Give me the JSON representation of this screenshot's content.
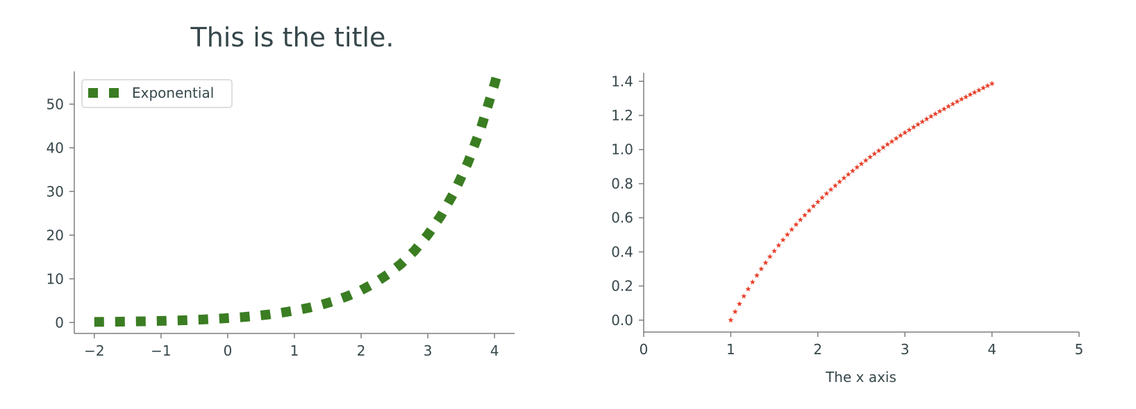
{
  "colors": {
    "text": "#36474b",
    "axis": "#7d7d7d",
    "series_left": "#3a7d22",
    "series_right": "#e8402a"
  },
  "chart_data": [
    {
      "type": "line",
      "title": "This is the title.",
      "xlabel": "",
      "ylabel": "",
      "xlim": [
        -2.3,
        4.3
      ],
      "ylim": [
        -2.5,
        57.5
      ],
      "xticks": [
        -2,
        -1,
        0,
        1,
        2,
        3,
        4
      ],
      "xtick_labels": [
        "−2",
        "−1",
        "0",
        "1",
        "2",
        "3",
        "4"
      ],
      "yticks": [
        0,
        10,
        20,
        30,
        40,
        50
      ],
      "ytick_labels": [
        "0",
        "10",
        "20",
        "30",
        "40",
        "50"
      ],
      "grid": false,
      "legend": {
        "placement": "upper-left",
        "entries": [
          "Exponential"
        ]
      },
      "series": [
        {
          "name": "Exponential",
          "style": "dashed",
          "color": "#3a7d22",
          "x": [
            -2,
            -1.8,
            -1.6,
            -1.4,
            -1.2,
            -1,
            -0.8,
            -0.6,
            -0.4,
            -0.2,
            0,
            0.2,
            0.4,
            0.6,
            0.8,
            1,
            1.2,
            1.4,
            1.6,
            1.8,
            2,
            2.2,
            2.4,
            2.6,
            2.8,
            3,
            3.2,
            3.4,
            3.6,
            3.8,
            4
          ],
          "y": [
            0.14,
            0.17,
            0.2,
            0.25,
            0.3,
            0.37,
            0.45,
            0.55,
            0.67,
            0.82,
            1,
            1.22,
            1.49,
            1.82,
            2.23,
            2.72,
            3.32,
            4.06,
            4.95,
            6.05,
            7.39,
            9.03,
            11.02,
            13.46,
            16.44,
            20.09,
            24.53,
            29.96,
            36.6,
            44.7,
            54.6
          ]
        }
      ]
    },
    {
      "type": "scatter",
      "title": "",
      "xlabel": "The x axis",
      "ylabel": "",
      "xlim": [
        0,
        5
      ],
      "ylim": [
        -0.07,
        1.45
      ],
      "xticks": [
        0,
        1,
        2,
        3,
        4,
        5
      ],
      "xtick_labels": [
        "0",
        "1",
        "2",
        "3",
        "4",
        "5"
      ],
      "yticks": [
        0,
        0.2,
        0.4,
        0.6,
        0.8,
        1.0,
        1.2,
        1.4
      ],
      "ytick_labels": [
        "0.0",
        "0.2",
        "0.4",
        "0.6",
        "0.8",
        "1.0",
        "1.2",
        "1.4"
      ],
      "grid": false,
      "series": [
        {
          "marker": "star",
          "color": "#e8402a",
          "x": [
            1,
            1.05,
            1.1,
            1.15,
            1.2,
            1.25,
            1.3,
            1.35,
            1.4,
            1.45,
            1.5,
            1.55,
            1.6,
            1.65,
            1.7,
            1.75,
            1.8,
            1.85,
            1.9,
            1.95,
            2,
            2.05,
            2.1,
            2.15,
            2.2,
            2.25,
            2.3,
            2.35,
            2.4,
            2.45,
            2.5,
            2.55,
            2.6,
            2.65,
            2.7,
            2.75,
            2.8,
            2.85,
            2.9,
            2.95,
            3,
            3.05,
            3.1,
            3.15,
            3.2,
            3.25,
            3.3,
            3.35,
            3.4,
            3.45,
            3.5,
            3.55,
            3.6,
            3.65,
            3.7,
            3.75,
            3.8,
            3.85,
            3.9,
            3.95,
            4
          ],
          "y": [
            0,
            0.049,
            0.095,
            0.14,
            0.182,
            0.223,
            0.262,
            0.3,
            0.336,
            0.372,
            0.405,
            0.438,
            0.47,
            0.501,
            0.531,
            0.56,
            0.588,
            0.615,
            0.642,
            0.668,
            0.693,
            0.718,
            0.742,
            0.765,
            0.788,
            0.811,
            0.833,
            0.854,
            0.875,
            0.896,
            0.916,
            0.936,
            0.956,
            0.975,
            0.993,
            1.012,
            1.03,
            1.047,
            1.065,
            1.082,
            1.099,
            1.115,
            1.131,
            1.147,
            1.163,
            1.179,
            1.194,
            1.209,
            1.224,
            1.238,
            1.253,
            1.267,
            1.281,
            1.295,
            1.308,
            1.322,
            1.335,
            1.348,
            1.361,
            1.374,
            1.386
          ]
        }
      ]
    }
  ]
}
